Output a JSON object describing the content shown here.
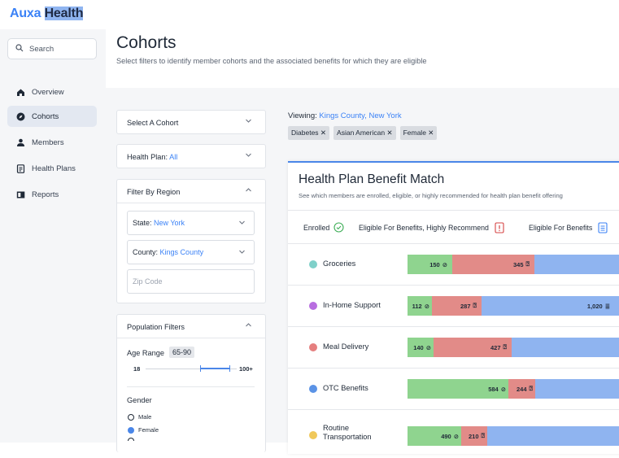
{
  "brand": {
    "part1": "Auxa",
    "part2": "Health"
  },
  "sidebar": {
    "search_label": "Search",
    "items": [
      {
        "label": "Overview",
        "icon": "home-icon"
      },
      {
        "label": "Cohorts",
        "icon": "compass-icon",
        "active": true
      },
      {
        "label": "Members",
        "icon": "person-icon"
      },
      {
        "label": "Health Plans",
        "icon": "document-icon"
      },
      {
        "label": "Reports",
        "icon": "book-icon"
      }
    ]
  },
  "header": {
    "title": "Cohorts",
    "subtitle": "Select filters to identify member cohorts and the associated benefits for which they are eligible"
  },
  "filters": {
    "select_cohort": "Select A Cohort",
    "health_plan_label": "Health Plan:",
    "health_plan_value": "All",
    "region_title": "Filter By Region",
    "state_label": "State:",
    "state_value": "New York",
    "county_label": "County:",
    "county_value": "Kings County",
    "zip_placeholder": "Zip Code",
    "population_title": "Population Filters",
    "age_label": "Age Range",
    "age_value": "65-90",
    "age_min": "18",
    "age_max": "100+",
    "gender_label": "Gender",
    "gender_options": [
      "Male",
      "Female"
    ]
  },
  "viewing": {
    "label": "Viewing:",
    "value": "Kings County, New York",
    "tags": [
      "Diabetes ✕",
      "Asian American ✕",
      "Female ✕"
    ]
  },
  "card": {
    "title": "Health Plan Benefit Match",
    "subtitle": "See which members are enrolled, eligible, or highly recommended for health plan benefit offering",
    "legend": {
      "enrolled": "Enrolled",
      "recommend": "Eligible For Benefits, Highly Recommend",
      "eligible": "Eligible For Benefits"
    }
  },
  "colors": {
    "enrolled": "#8fd48f",
    "recommend": "#e28b88",
    "eligible": "#8fb4f0",
    "accent": "#3b82f6"
  },
  "benefits": [
    {
      "label": "Groceries",
      "dot": "#7fd0c9",
      "enrolled": "150",
      "recommend": "345",
      "eligible": ""
    },
    {
      "label": "In-Home Support",
      "dot": "#b86ee0",
      "enrolled": "112",
      "recommend": "287",
      "eligible": "1,020"
    },
    {
      "label": "Meal Delivery",
      "dot": "#e57f7f",
      "enrolled": "140",
      "recommend": "427",
      "eligible": ""
    },
    {
      "label": "OTC Benefits",
      "dot": "#5b93e6",
      "enrolled": "584",
      "recommend": "244",
      "eligible": ""
    },
    {
      "label": "Routine Transportation",
      "dot": "#f0c85a",
      "enrolled": "490",
      "recommend": "210",
      "eligible": ""
    }
  ]
}
